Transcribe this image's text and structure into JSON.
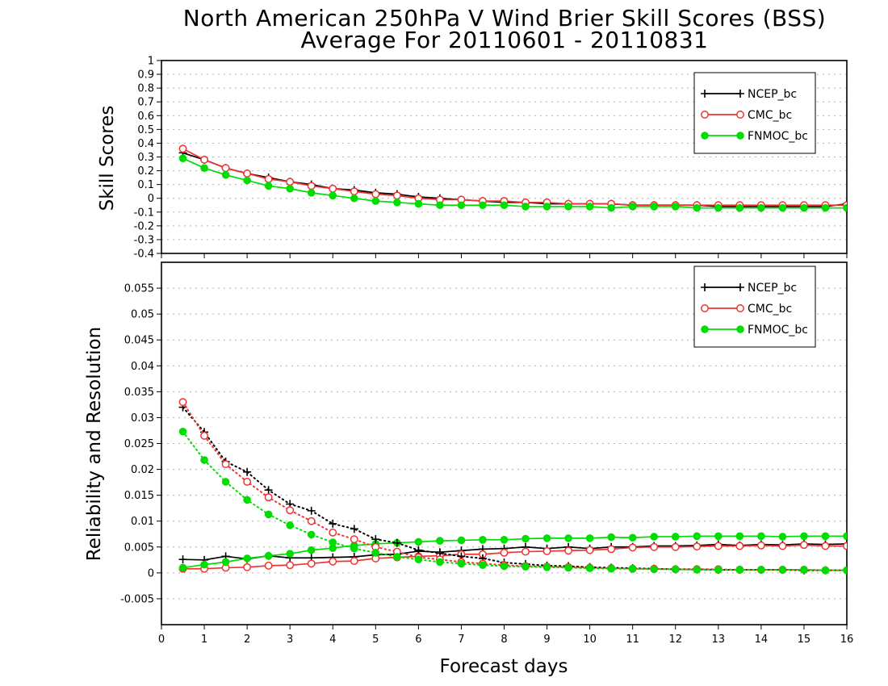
{
  "title_line1": "North American 250hPa V Wind Brier Skill Scores (BSS)",
  "title_line2": "Average For 20110601 - 20110831",
  "xlabel": "Forecast days",
  "colors": {
    "NCEP_bc": "#000000",
    "CMC_bc": "#ee3333",
    "FNMOC_bc": "#00dd00"
  },
  "chart_data": [
    {
      "type": "line",
      "ylabel": "Skill Scores",
      "xlim": [
        0,
        16
      ],
      "ylim": [
        -0.4,
        1
      ],
      "x_ticks": [
        0,
        1,
        2,
        3,
        4,
        5,
        6,
        7,
        8,
        9,
        10,
        11,
        12,
        13,
        14,
        15,
        16
      ],
      "y_ticks": [
        "-0.4",
        "-0.3",
        "-0.2",
        "-0.1",
        "0",
        "0.1",
        "0.2",
        "0.3",
        "0.4",
        "0.5",
        "0.6",
        "0.7",
        "0.8",
        "0.9",
        "1"
      ],
      "grid": true,
      "legend_position": "top-right",
      "x": [
        0.5,
        1,
        1.5,
        2,
        2.5,
        3,
        3.5,
        4,
        4.5,
        5,
        5.5,
        6,
        6.5,
        7,
        7.5,
        8,
        8.5,
        9,
        9.5,
        10,
        10.5,
        11,
        11.5,
        12,
        12.5,
        13,
        13.5,
        14,
        14.5,
        15,
        15.5,
        16
      ],
      "series": [
        {
          "name": "NCEP_bc",
          "marker": "plus",
          "values": [
            0.33,
            0.28,
            0.22,
            0.18,
            0.15,
            0.12,
            0.1,
            0.07,
            0.06,
            0.04,
            0.03,
            0.01,
            0.0,
            -0.01,
            -0.02,
            -0.03,
            -0.03,
            -0.04,
            -0.04,
            -0.04,
            -0.04,
            -0.05,
            -0.05,
            -0.05,
            -0.05,
            -0.06,
            -0.06,
            -0.06,
            -0.06,
            -0.06,
            -0.06,
            -0.04
          ]
        },
        {
          "name": "CMC_bc",
          "marker": "open-circle",
          "values": [
            0.36,
            0.28,
            0.22,
            0.18,
            0.14,
            0.12,
            0.09,
            0.07,
            0.05,
            0.03,
            0.02,
            0.0,
            -0.01,
            -0.01,
            -0.02,
            -0.02,
            -0.03,
            -0.03,
            -0.04,
            -0.04,
            -0.04,
            -0.05,
            -0.05,
            -0.05,
            -0.05,
            -0.05,
            -0.05,
            -0.05,
            -0.05,
            -0.05,
            -0.05,
            -0.05
          ]
        },
        {
          "name": "FNMOC_bc",
          "marker": "filled-circle",
          "values": [
            0.29,
            0.22,
            0.17,
            0.13,
            0.09,
            0.07,
            0.04,
            0.02,
            0.0,
            -0.02,
            -0.03,
            -0.04,
            -0.05,
            -0.05,
            -0.05,
            -0.05,
            -0.06,
            -0.06,
            -0.06,
            -0.06,
            -0.07,
            -0.06,
            -0.06,
            -0.06,
            -0.07,
            -0.07,
            -0.07,
            -0.07,
            -0.07,
            -0.07,
            -0.07,
            -0.07
          ]
        }
      ]
    },
    {
      "type": "line",
      "ylabel": "Reliability and Resolution",
      "xlim": [
        0,
        16
      ],
      "ylim": [
        -0.01,
        0.06
      ],
      "x_ticks": [
        0,
        1,
        2,
        3,
        4,
        5,
        6,
        7,
        8,
        9,
        10,
        11,
        12,
        13,
        14,
        15,
        16
      ],
      "y_ticks": [
        "-0.005",
        "0",
        "0.005",
        "0.01",
        "0.015",
        "0.02",
        "0.025",
        "0.03",
        "0.035",
        "0.04",
        "0.045",
        "0.05",
        "0.055"
      ],
      "grid": true,
      "legend_position": "top-right",
      "x": [
        0.5,
        1,
        1.5,
        2,
        2.5,
        3,
        3.5,
        4,
        4.5,
        5,
        5.5,
        6,
        6.5,
        7,
        7.5,
        8,
        8.5,
        9,
        9.5,
        10,
        10.5,
        11,
        11.5,
        12,
        12.5,
        13,
        13.5,
        14,
        14.5,
        15,
        15.5,
        16
      ],
      "series": [
        {
          "name": "NCEP_bc",
          "component": "reliability",
          "line": "solid",
          "marker": "plus",
          "values": [
            0.0026,
            0.0025,
            0.0032,
            0.0027,
            0.0033,
            0.0029,
            0.0029,
            0.003,
            0.0031,
            0.0035,
            0.0036,
            0.0042,
            0.004,
            0.0043,
            0.0046,
            0.0047,
            0.005,
            0.0047,
            0.005,
            0.0047,
            0.005,
            0.005,
            0.0052,
            0.0052,
            0.0053,
            0.0055,
            0.0053,
            0.0055,
            0.0054,
            0.0056,
            0.0055,
            0.0056
          ]
        },
        {
          "name": "CMC_bc",
          "component": "reliability",
          "line": "solid",
          "marker": "open-circle",
          "values": [
            0.0008,
            0.0008,
            0.001,
            0.0011,
            0.0014,
            0.0015,
            0.0018,
            0.0022,
            0.0023,
            0.0028,
            0.003,
            0.0032,
            0.0033,
            0.0036,
            0.0036,
            0.0039,
            0.0041,
            0.0042,
            0.0043,
            0.0044,
            0.0046,
            0.0049,
            0.005,
            0.005,
            0.0051,
            0.0052,
            0.0052,
            0.0053,
            0.0052,
            0.0054,
            0.0052,
            0.0052
          ]
        },
        {
          "name": "FNMOC_bc",
          "component": "reliability",
          "line": "solid",
          "marker": "filled-circle",
          "values": [
            0.001,
            0.0016,
            0.0021,
            0.0028,
            0.0033,
            0.0037,
            0.0044,
            0.0048,
            0.0053,
            0.0056,
            0.0058,
            0.006,
            0.0062,
            0.0063,
            0.0064,
            0.0064,
            0.0066,
            0.0067,
            0.0067,
            0.0067,
            0.0069,
            0.0068,
            0.007,
            0.007,
            0.0071,
            0.0071,
            0.0071,
            0.0071,
            0.007,
            0.0071,
            0.0071,
            0.0071
          ]
        },
        {
          "name": "NCEP_bc",
          "component": "resolution",
          "line": "dotted",
          "marker": "plus",
          "values": [
            0.032,
            0.0272,
            0.0215,
            0.0195,
            0.016,
            0.0133,
            0.012,
            0.0095,
            0.0085,
            0.0065,
            0.0058,
            0.0044,
            0.0038,
            0.0032,
            0.0028,
            0.002,
            0.0017,
            0.0014,
            0.0013,
            0.0011,
            0.001,
            0.0009,
            0.0008,
            0.0007,
            0.0007,
            0.0006,
            0.0006,
            0.0006,
            0.0006,
            0.0005,
            0.0005,
            0.0005
          ]
        },
        {
          "name": "CMC_bc",
          "component": "resolution",
          "line": "dotted",
          "marker": "open-circle",
          "values": [
            0.033,
            0.0265,
            0.021,
            0.0176,
            0.0146,
            0.0121,
            0.01,
            0.0078,
            0.0065,
            0.005,
            0.0041,
            0.003,
            0.0026,
            0.0021,
            0.0018,
            0.0015,
            0.0013,
            0.0012,
            0.0011,
            0.001,
            0.0009,
            0.0008,
            0.0008,
            0.0007,
            0.0007,
            0.0007,
            0.0006,
            0.0006,
            0.0006,
            0.0006,
            0.0005,
            0.0005
          ]
        },
        {
          "name": "FNMOC_bc",
          "component": "resolution",
          "line": "dotted",
          "marker": "filled-circle",
          "values": [
            0.0273,
            0.0218,
            0.0176,
            0.0141,
            0.0113,
            0.0092,
            0.0074,
            0.0059,
            0.0047,
            0.0039,
            0.0031,
            0.0026,
            0.0021,
            0.0018,
            0.0015,
            0.0013,
            0.0012,
            0.0011,
            0.001,
            0.0009,
            0.0008,
            0.0008,
            0.0007,
            0.0007,
            0.0006,
            0.0006,
            0.0006,
            0.0006,
            0.0006,
            0.0006,
            0.0005,
            0.0005
          ]
        }
      ]
    }
  ]
}
